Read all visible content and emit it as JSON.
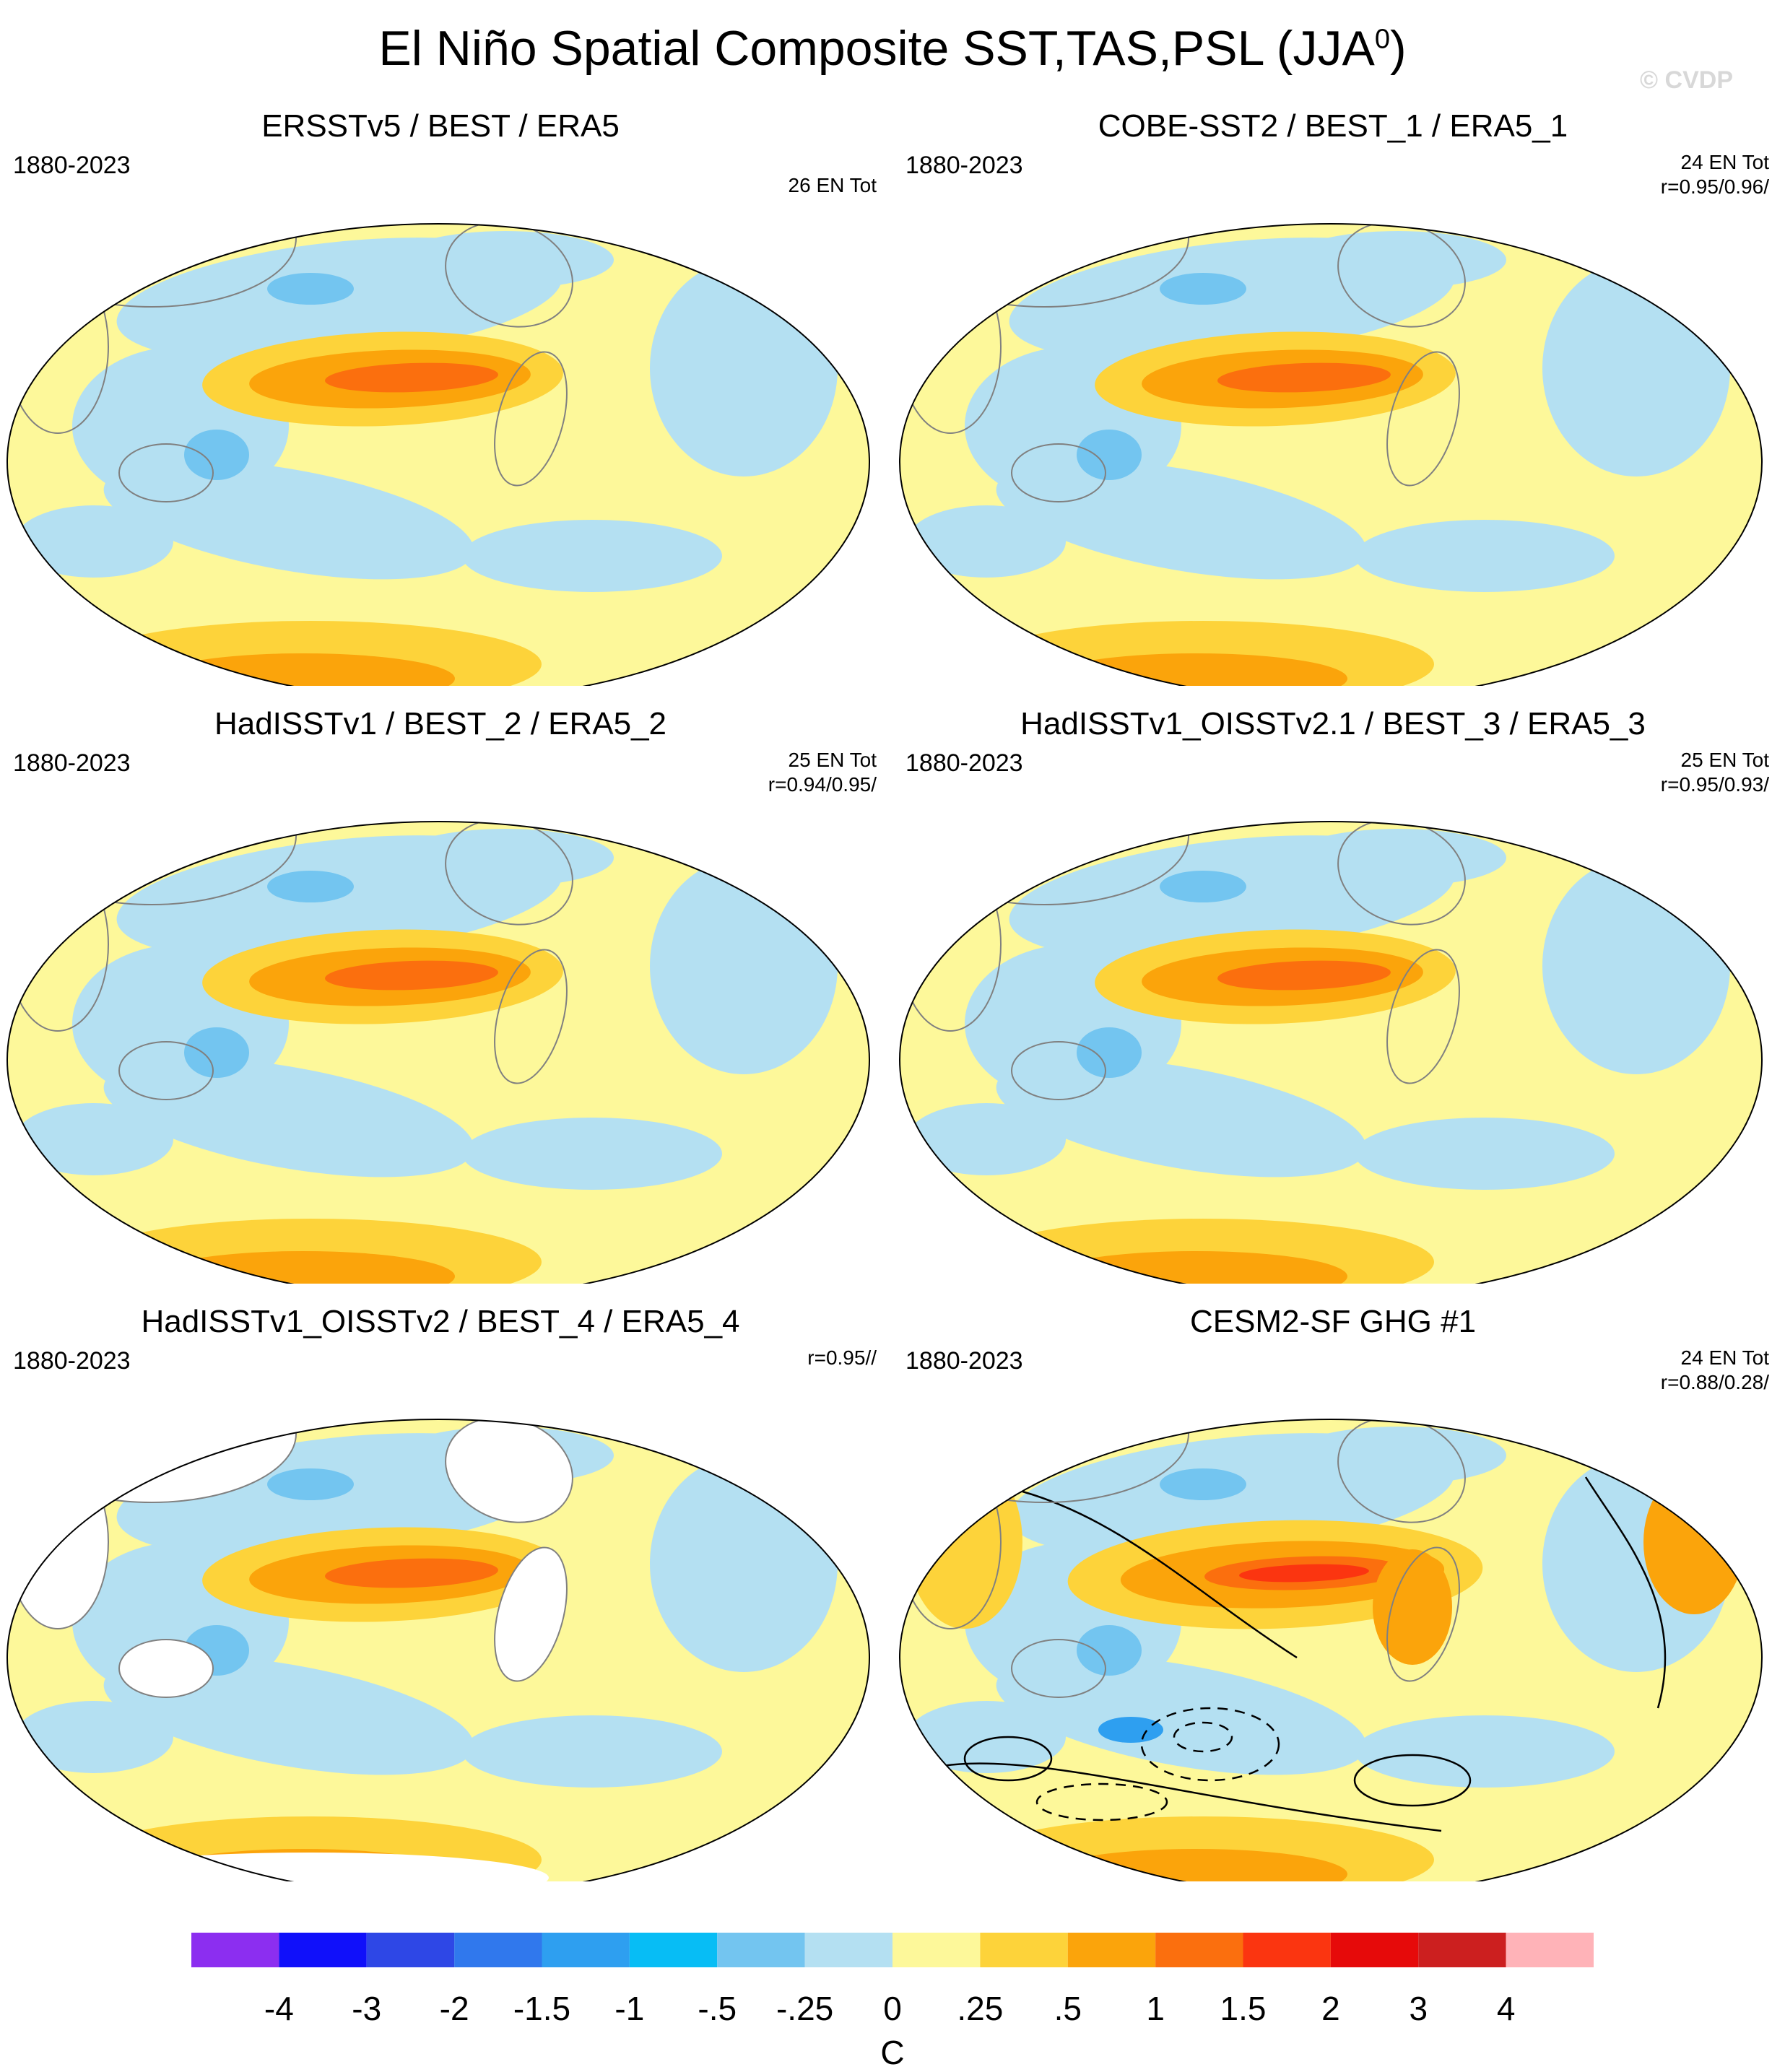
{
  "figure": {
    "title_main": "El Niño Spatial Composite SST,TAS,PSL (JJA",
    "title_sup": "0",
    "title_close": ")",
    "watermark": "© CVDP"
  },
  "palette": {
    "ocean_light_blue": "#b4e0f2",
    "ocean_mid_blue": "#73c5f0",
    "ocean_blue": "#2e9ff0",
    "pale_yellow": "#fdf89a",
    "yellow": "#fdd33a",
    "orange": "#fba40b",
    "dark_orange": "#fb6f0e",
    "red_orange": "#fb3510",
    "coastline": "#808080",
    "missing": "#ffffff"
  },
  "panels": [
    {
      "title": "ERSSTv5 / BEST / ERA5",
      "period": "1880-2023",
      "stats_line1": "26 EN Tot",
      "stats_line2": "",
      "psl_contours": false
    },
    {
      "title": "COBE-SST2 / BEST_1 / ERA5_1",
      "period": "1880-2023",
      "stats_line1": "24 EN Tot",
      "stats_line2": "r=0.95/0.96/",
      "psl_contours": false
    },
    {
      "title": "HadISSTv1 / BEST_2 / ERA5_2",
      "period": "1880-2023",
      "stats_line1": "25 EN Tot",
      "stats_line2": "r=0.94/0.95/",
      "psl_contours": false
    },
    {
      "title": "HadISSTv1_OISSTv2.1 / BEST_3 / ERA5_3",
      "period": "1880-2023",
      "stats_line1": "25 EN Tot",
      "stats_line2": "r=0.95/0.93/",
      "psl_contours": false
    },
    {
      "title": "HadISSTv1_OISSTv2 / BEST_4 / ERA5_4",
      "period": "1880-2023",
      "stats_line1": "",
      "stats_line2": "r=0.95//",
      "psl_contours": false
    },
    {
      "title": "CESM2-SF GHG #1",
      "period": "1880-2023",
      "stats_line1": "24 EN Tot",
      "stats_line2": "r=0.88/0.28/",
      "psl_contours": true
    }
  ],
  "colorbar": {
    "unit": "C",
    "labels": [
      "-4",
      "-3",
      "-2",
      "-1.5",
      "-1",
      "-.5",
      "-.25",
      "0",
      ".25",
      ".5",
      "1",
      "1.5",
      "2",
      "3",
      "4"
    ],
    "colors": [
      "#8c2ef0",
      "#1010fa",
      "#2e47e6",
      "#3078ed",
      "#2e9ff0",
      "#07bdf5",
      "#73c5f0",
      "#b4e0f2",
      "#fdf89a",
      "#fdd33a",
      "#fba40b",
      "#fb6f0e",
      "#fb3510",
      "#e60a0a",
      "#cc1f1f",
      "#ffb3b8"
    ]
  }
}
